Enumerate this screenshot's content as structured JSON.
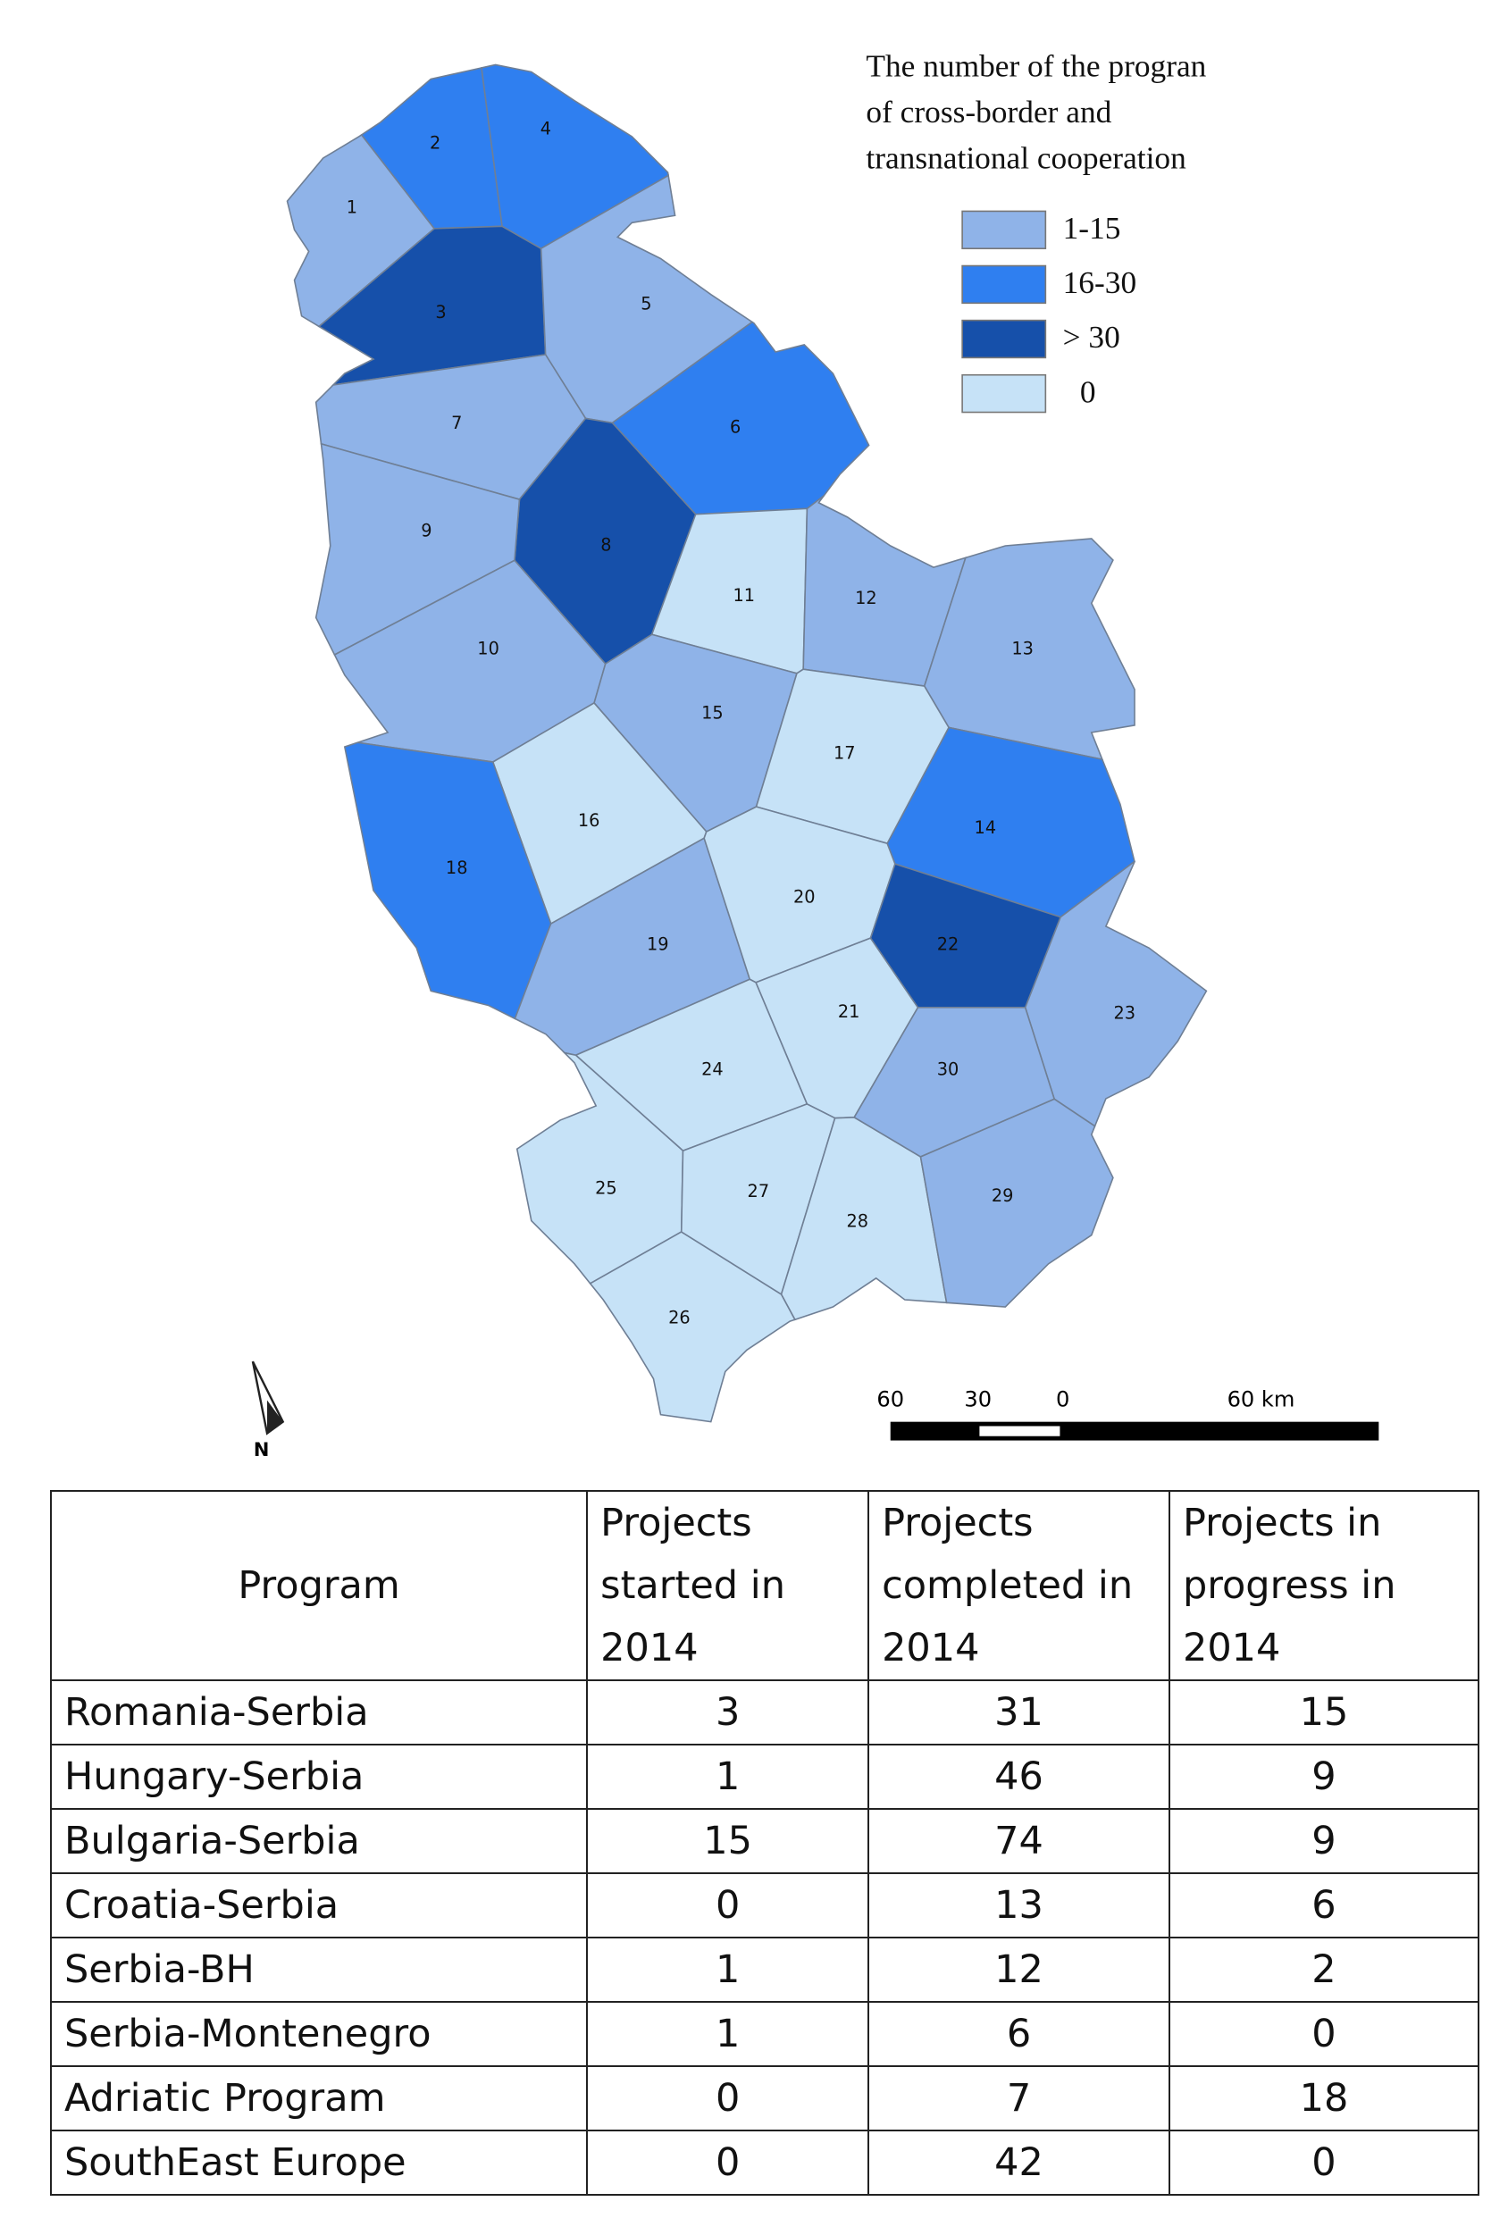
{
  "legend": {
    "title": [
      "The number of the progran",
      "of cross-border and",
      "transnational cooperation"
    ],
    "items": [
      {
        "label": "1-15",
        "color": "#8fb3e8"
      },
      {
        "label": "16-30",
        "color": "#2f7ff0"
      },
      {
        "label": "> 30",
        "color": "#1650aa"
      },
      {
        "label": "0",
        "color": "#c6e2f7"
      }
    ]
  },
  "regions": [
    {
      "label": "1",
      "legend_item": 0
    },
    {
      "label": "2",
      "legend_item": 1
    },
    {
      "label": "3",
      "legend_item": 2
    },
    {
      "label": "4",
      "legend_item": 1
    },
    {
      "label": "5",
      "legend_item": 0
    },
    {
      "label": "6",
      "legend_item": 1
    },
    {
      "label": "7",
      "legend_item": 0
    },
    {
      "label": "8",
      "legend_item": 2
    },
    {
      "label": "9",
      "legend_item": 0
    },
    {
      "label": "10",
      "legend_item": 0
    },
    {
      "label": "11",
      "legend_item": 3
    },
    {
      "label": "12",
      "legend_item": 0
    },
    {
      "label": "13",
      "legend_item": 0
    },
    {
      "label": "14",
      "legend_item": 1
    },
    {
      "label": "15",
      "legend_item": 0
    },
    {
      "label": "16",
      "legend_item": 3
    },
    {
      "label": "17",
      "legend_item": 3
    },
    {
      "label": "18",
      "legend_item": 1
    },
    {
      "label": "19",
      "legend_item": 0
    },
    {
      "label": "20",
      "legend_item": 3
    },
    {
      "label": "21",
      "legend_item": 3
    },
    {
      "label": "22",
      "legend_item": 2
    },
    {
      "label": "23",
      "legend_item": 0
    },
    {
      "label": "24",
      "legend_item": 3
    },
    {
      "label": "25",
      "legend_item": 3
    },
    {
      "label": "26",
      "legend_item": 3
    },
    {
      "label": "27",
      "legend_item": 3
    },
    {
      "label": "28",
      "legend_item": 3
    },
    {
      "label": "29",
      "legend_item": 0
    },
    {
      "label": "30",
      "legend_item": 0
    }
  ],
  "scale_bar": {
    "labels": [
      "60",
      "30",
      "0",
      "60 km"
    ]
  },
  "north": "N",
  "table": {
    "header": [
      "Program",
      "Projects started in 2014",
      "Projects completed in 2014",
      "Projects in progress in 2014"
    ],
    "rows": [
      [
        "Romania-Serbia",
        3,
        31,
        15
      ],
      [
        "Hungary-Serbia",
        1,
        46,
        9
      ],
      [
        "Bulgaria-Serbia",
        15,
        74,
        9
      ],
      [
        "Croatia-Serbia",
        0,
        13,
        6
      ],
      [
        "Serbia-BH",
        1,
        12,
        2
      ],
      [
        "Serbia-Montenegro",
        1,
        6,
        0
      ],
      [
        "Adriatic Program",
        0,
        7,
        18
      ],
      [
        "SouthEast Europe",
        0,
        42,
        0
      ]
    ]
  }
}
